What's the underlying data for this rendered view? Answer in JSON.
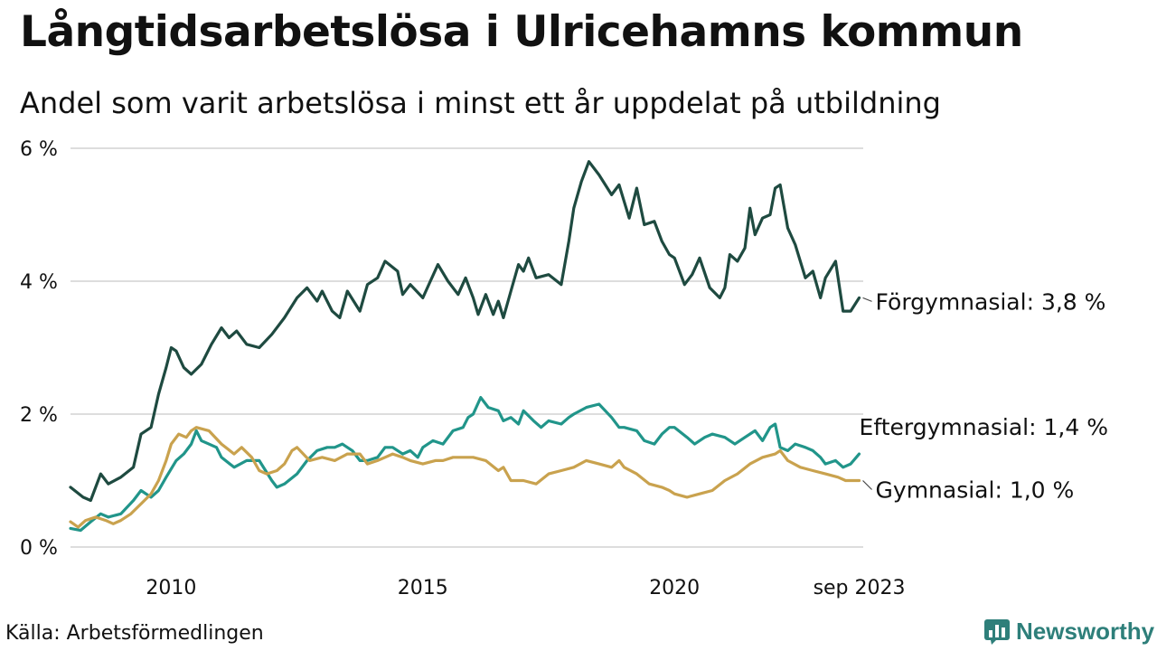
{
  "title": "Långtidsarbetslösa i Ulricehamns kommun",
  "subtitle": "Andel som varit arbetslösa i minst ett år uppdelat på utbildning",
  "source": "Källa: Arbetsförmedlingen",
  "brand": {
    "name": "Newsworthy",
    "icon": "bar-chart-logo-icon",
    "color": "#2e7f7a"
  },
  "chart_data": {
    "type": "line",
    "title": "Långtidsarbetslösa i Ulricehamns kommun",
    "subtitle": "Andel som varit arbetslösa i minst ett år uppdelat på utbildning",
    "xlabel": "",
    "ylabel": "",
    "xlim": [
      2008.0,
      2023.75
    ],
    "ylim": [
      0,
      6
    ],
    "yticks": [
      0,
      2,
      4,
      6
    ],
    "ytick_labels": [
      "0 %",
      "2 %",
      "4 %",
      "6 %"
    ],
    "xticks": [
      2010,
      2015,
      2020,
      2023.67
    ],
    "xtick_labels": [
      "2010",
      "2015",
      "2020",
      "sep 2023"
    ],
    "grid": "horizontal",
    "series": [
      {
        "name": "Förgymnasial",
        "label": "Förgymnasial: 3,8 %",
        "color": "#1e4a40",
        "points": [
          [
            2008.0,
            0.9
          ],
          [
            2008.25,
            0.75
          ],
          [
            2008.4,
            0.7
          ],
          [
            2008.6,
            1.1
          ],
          [
            2008.75,
            0.95
          ],
          [
            2009.0,
            1.05
          ],
          [
            2009.25,
            1.2
          ],
          [
            2009.4,
            1.7
          ],
          [
            2009.6,
            1.8
          ],
          [
            2009.75,
            2.3
          ],
          [
            2009.9,
            2.7
          ],
          [
            2010.0,
            3.0
          ],
          [
            2010.1,
            2.95
          ],
          [
            2010.25,
            2.7
          ],
          [
            2010.4,
            2.6
          ],
          [
            2010.6,
            2.75
          ],
          [
            2010.8,
            3.05
          ],
          [
            2011.0,
            3.3
          ],
          [
            2011.15,
            3.15
          ],
          [
            2011.3,
            3.25
          ],
          [
            2011.5,
            3.05
          ],
          [
            2011.75,
            3.0
          ],
          [
            2012.0,
            3.2
          ],
          [
            2012.25,
            3.45
          ],
          [
            2012.5,
            3.75
          ],
          [
            2012.7,
            3.9
          ],
          [
            2012.9,
            3.7
          ],
          [
            2013.0,
            3.85
          ],
          [
            2013.2,
            3.55
          ],
          [
            2013.35,
            3.45
          ],
          [
            2013.5,
            3.85
          ],
          [
            2013.75,
            3.55
          ],
          [
            2013.9,
            3.95
          ],
          [
            2014.1,
            4.05
          ],
          [
            2014.25,
            4.3
          ],
          [
            2014.5,
            4.15
          ],
          [
            2014.6,
            3.8
          ],
          [
            2014.75,
            3.95
          ],
          [
            2015.0,
            3.75
          ],
          [
            2015.15,
            4.0
          ],
          [
            2015.3,
            4.25
          ],
          [
            2015.5,
            4.0
          ],
          [
            2015.7,
            3.8
          ],
          [
            2015.85,
            4.05
          ],
          [
            2016.0,
            3.75
          ],
          [
            2016.1,
            3.5
          ],
          [
            2016.25,
            3.8
          ],
          [
            2016.4,
            3.5
          ],
          [
            2016.5,
            3.7
          ],
          [
            2016.6,
            3.45
          ],
          [
            2016.75,
            3.85
          ],
          [
            2016.9,
            4.25
          ],
          [
            2017.0,
            4.15
          ],
          [
            2017.1,
            4.35
          ],
          [
            2017.25,
            4.05
          ],
          [
            2017.5,
            4.1
          ],
          [
            2017.75,
            3.95
          ],
          [
            2017.9,
            4.6
          ],
          [
            2018.0,
            5.1
          ],
          [
            2018.15,
            5.5
          ],
          [
            2018.3,
            5.8
          ],
          [
            2018.5,
            5.6
          ],
          [
            2018.75,
            5.3
          ],
          [
            2018.9,
            5.45
          ],
          [
            2019.0,
            5.2
          ],
          [
            2019.1,
            4.95
          ],
          [
            2019.25,
            5.4
          ],
          [
            2019.4,
            4.85
          ],
          [
            2019.6,
            4.9
          ],
          [
            2019.75,
            4.6
          ],
          [
            2019.9,
            4.4
          ],
          [
            2020.0,
            4.35
          ],
          [
            2020.2,
            3.95
          ],
          [
            2020.35,
            4.1
          ],
          [
            2020.5,
            4.35
          ],
          [
            2020.7,
            3.9
          ],
          [
            2020.9,
            3.75
          ],
          [
            2021.0,
            3.9
          ],
          [
            2021.1,
            4.4
          ],
          [
            2021.25,
            4.3
          ],
          [
            2021.4,
            4.5
          ],
          [
            2021.5,
            5.1
          ],
          [
            2021.6,
            4.7
          ],
          [
            2021.75,
            4.95
          ],
          [
            2021.9,
            5.0
          ],
          [
            2022.0,
            5.4
          ],
          [
            2022.1,
            5.45
          ],
          [
            2022.25,
            4.8
          ],
          [
            2022.4,
            4.55
          ],
          [
            2022.6,
            4.05
          ],
          [
            2022.75,
            4.15
          ],
          [
            2022.9,
            3.75
          ],
          [
            2023.0,
            4.05
          ],
          [
            2023.2,
            4.3
          ],
          [
            2023.35,
            3.55
          ],
          [
            2023.5,
            3.55
          ],
          [
            2023.67,
            3.75
          ]
        ]
      },
      {
        "name": "Eftergymnasial",
        "label": "Eftergymnasial: 1,4 %",
        "color": "#21958a",
        "points": [
          [
            2008.0,
            0.28
          ],
          [
            2008.2,
            0.25
          ],
          [
            2008.4,
            0.38
          ],
          [
            2008.6,
            0.5
          ],
          [
            2008.75,
            0.45
          ],
          [
            2009.0,
            0.5
          ],
          [
            2009.25,
            0.7
          ],
          [
            2009.4,
            0.85
          ],
          [
            2009.6,
            0.75
          ],
          [
            2009.75,
            0.85
          ],
          [
            2009.9,
            1.05
          ],
          [
            2010.1,
            1.3
          ],
          [
            2010.25,
            1.4
          ],
          [
            2010.4,
            1.55
          ],
          [
            2010.5,
            1.75
          ],
          [
            2010.6,
            1.6
          ],
          [
            2010.75,
            1.55
          ],
          [
            2010.9,
            1.5
          ],
          [
            2011.0,
            1.35
          ],
          [
            2011.25,
            1.2
          ],
          [
            2011.5,
            1.3
          ],
          [
            2011.75,
            1.3
          ],
          [
            2012.0,
            1.0
          ],
          [
            2012.1,
            0.9
          ],
          [
            2012.25,
            0.95
          ],
          [
            2012.5,
            1.1
          ],
          [
            2012.7,
            1.3
          ],
          [
            2012.9,
            1.45
          ],
          [
            2013.1,
            1.5
          ],
          [
            2013.25,
            1.5
          ],
          [
            2013.4,
            1.55
          ],
          [
            2013.6,
            1.45
          ],
          [
            2013.75,
            1.3
          ],
          [
            2013.9,
            1.3
          ],
          [
            2014.1,
            1.35
          ],
          [
            2014.25,
            1.5
          ],
          [
            2014.4,
            1.5
          ],
          [
            2014.6,
            1.4
          ],
          [
            2014.75,
            1.45
          ],
          [
            2014.9,
            1.35
          ],
          [
            2015.0,
            1.5
          ],
          [
            2015.2,
            1.6
          ],
          [
            2015.4,
            1.55
          ],
          [
            2015.6,
            1.75
          ],
          [
            2015.8,
            1.8
          ],
          [
            2015.9,
            1.95
          ],
          [
            2016.0,
            2.0
          ],
          [
            2016.15,
            2.25
          ],
          [
            2016.3,
            2.1
          ],
          [
            2016.5,
            2.05
          ],
          [
            2016.6,
            1.9
          ],
          [
            2016.75,
            1.95
          ],
          [
            2016.9,
            1.85
          ],
          [
            2017.0,
            2.05
          ],
          [
            2017.2,
            1.9
          ],
          [
            2017.35,
            1.8
          ],
          [
            2017.5,
            1.9
          ],
          [
            2017.75,
            1.85
          ],
          [
            2017.9,
            1.95
          ],
          [
            2018.0,
            2.0
          ],
          [
            2018.25,
            2.1
          ],
          [
            2018.5,
            2.15
          ],
          [
            2018.75,
            1.95
          ],
          [
            2018.9,
            1.8
          ],
          [
            2019.0,
            1.8
          ],
          [
            2019.25,
            1.75
          ],
          [
            2019.4,
            1.6
          ],
          [
            2019.6,
            1.55
          ],
          [
            2019.75,
            1.7
          ],
          [
            2019.9,
            1.8
          ],
          [
            2020.0,
            1.8
          ],
          [
            2020.25,
            1.65
          ],
          [
            2020.4,
            1.55
          ],
          [
            2020.6,
            1.65
          ],
          [
            2020.75,
            1.7
          ],
          [
            2021.0,
            1.65
          ],
          [
            2021.2,
            1.55
          ],
          [
            2021.4,
            1.65
          ],
          [
            2021.6,
            1.75
          ],
          [
            2021.75,
            1.6
          ],
          [
            2021.9,
            1.8
          ],
          [
            2022.0,
            1.85
          ],
          [
            2022.1,
            1.5
          ],
          [
            2022.25,
            1.45
          ],
          [
            2022.4,
            1.55
          ],
          [
            2022.6,
            1.5
          ],
          [
            2022.75,
            1.45
          ],
          [
            2022.9,
            1.35
          ],
          [
            2023.0,
            1.25
          ],
          [
            2023.2,
            1.3
          ],
          [
            2023.35,
            1.2
          ],
          [
            2023.5,
            1.25
          ],
          [
            2023.67,
            1.4
          ]
        ]
      },
      {
        "name": "Gymnasial",
        "label": "Gymnasial: 1,0 %",
        "color": "#c9a24e",
        "points": [
          [
            2008.0,
            0.38
          ],
          [
            2008.15,
            0.3
          ],
          [
            2008.3,
            0.4
          ],
          [
            2008.5,
            0.45
          ],
          [
            2008.7,
            0.4
          ],
          [
            2008.85,
            0.35
          ],
          [
            2009.0,
            0.4
          ],
          [
            2009.2,
            0.5
          ],
          [
            2009.4,
            0.65
          ],
          [
            2009.6,
            0.8
          ],
          [
            2009.75,
            1.0
          ],
          [
            2009.9,
            1.3
          ],
          [
            2010.0,
            1.55
          ],
          [
            2010.15,
            1.7
          ],
          [
            2010.3,
            1.65
          ],
          [
            2010.4,
            1.75
          ],
          [
            2010.5,
            1.8
          ],
          [
            2010.75,
            1.75
          ],
          [
            2011.0,
            1.55
          ],
          [
            2011.25,
            1.4
          ],
          [
            2011.4,
            1.5
          ],
          [
            2011.6,
            1.35
          ],
          [
            2011.75,
            1.15
          ],
          [
            2011.9,
            1.1
          ],
          [
            2012.1,
            1.15
          ],
          [
            2012.25,
            1.25
          ],
          [
            2012.4,
            1.45
          ],
          [
            2012.5,
            1.5
          ],
          [
            2012.75,
            1.3
          ],
          [
            2013.0,
            1.35
          ],
          [
            2013.25,
            1.3
          ],
          [
            2013.5,
            1.4
          ],
          [
            2013.75,
            1.4
          ],
          [
            2013.9,
            1.25
          ],
          [
            2014.1,
            1.3
          ],
          [
            2014.25,
            1.35
          ],
          [
            2014.4,
            1.4
          ],
          [
            2014.6,
            1.35
          ],
          [
            2014.75,
            1.3
          ],
          [
            2015.0,
            1.25
          ],
          [
            2015.25,
            1.3
          ],
          [
            2015.4,
            1.3
          ],
          [
            2015.6,
            1.35
          ],
          [
            2015.75,
            1.35
          ],
          [
            2016.0,
            1.35
          ],
          [
            2016.25,
            1.3
          ],
          [
            2016.5,
            1.15
          ],
          [
            2016.6,
            1.2
          ],
          [
            2016.75,
            1.0
          ],
          [
            2017.0,
            1.0
          ],
          [
            2017.25,
            0.95
          ],
          [
            2017.5,
            1.1
          ],
          [
            2017.75,
            1.15
          ],
          [
            2018.0,
            1.2
          ],
          [
            2018.25,
            1.3
          ],
          [
            2018.5,
            1.25
          ],
          [
            2018.75,
            1.2
          ],
          [
            2018.9,
            1.3
          ],
          [
            2019.0,
            1.2
          ],
          [
            2019.25,
            1.1
          ],
          [
            2019.5,
            0.95
          ],
          [
            2019.75,
            0.9
          ],
          [
            2019.9,
            0.85
          ],
          [
            2020.0,
            0.8
          ],
          [
            2020.25,
            0.75
          ],
          [
            2020.5,
            0.8
          ],
          [
            2020.75,
            0.85
          ],
          [
            2021.0,
            1.0
          ],
          [
            2021.25,
            1.1
          ],
          [
            2021.5,
            1.25
          ],
          [
            2021.75,
            1.35
          ],
          [
            2022.0,
            1.4
          ],
          [
            2022.1,
            1.45
          ],
          [
            2022.25,
            1.3
          ],
          [
            2022.5,
            1.2
          ],
          [
            2022.75,
            1.15
          ],
          [
            2023.0,
            1.1
          ],
          [
            2023.25,
            1.05
          ],
          [
            2023.4,
            1.0
          ],
          [
            2023.67,
            1.0
          ]
        ]
      }
    ]
  }
}
